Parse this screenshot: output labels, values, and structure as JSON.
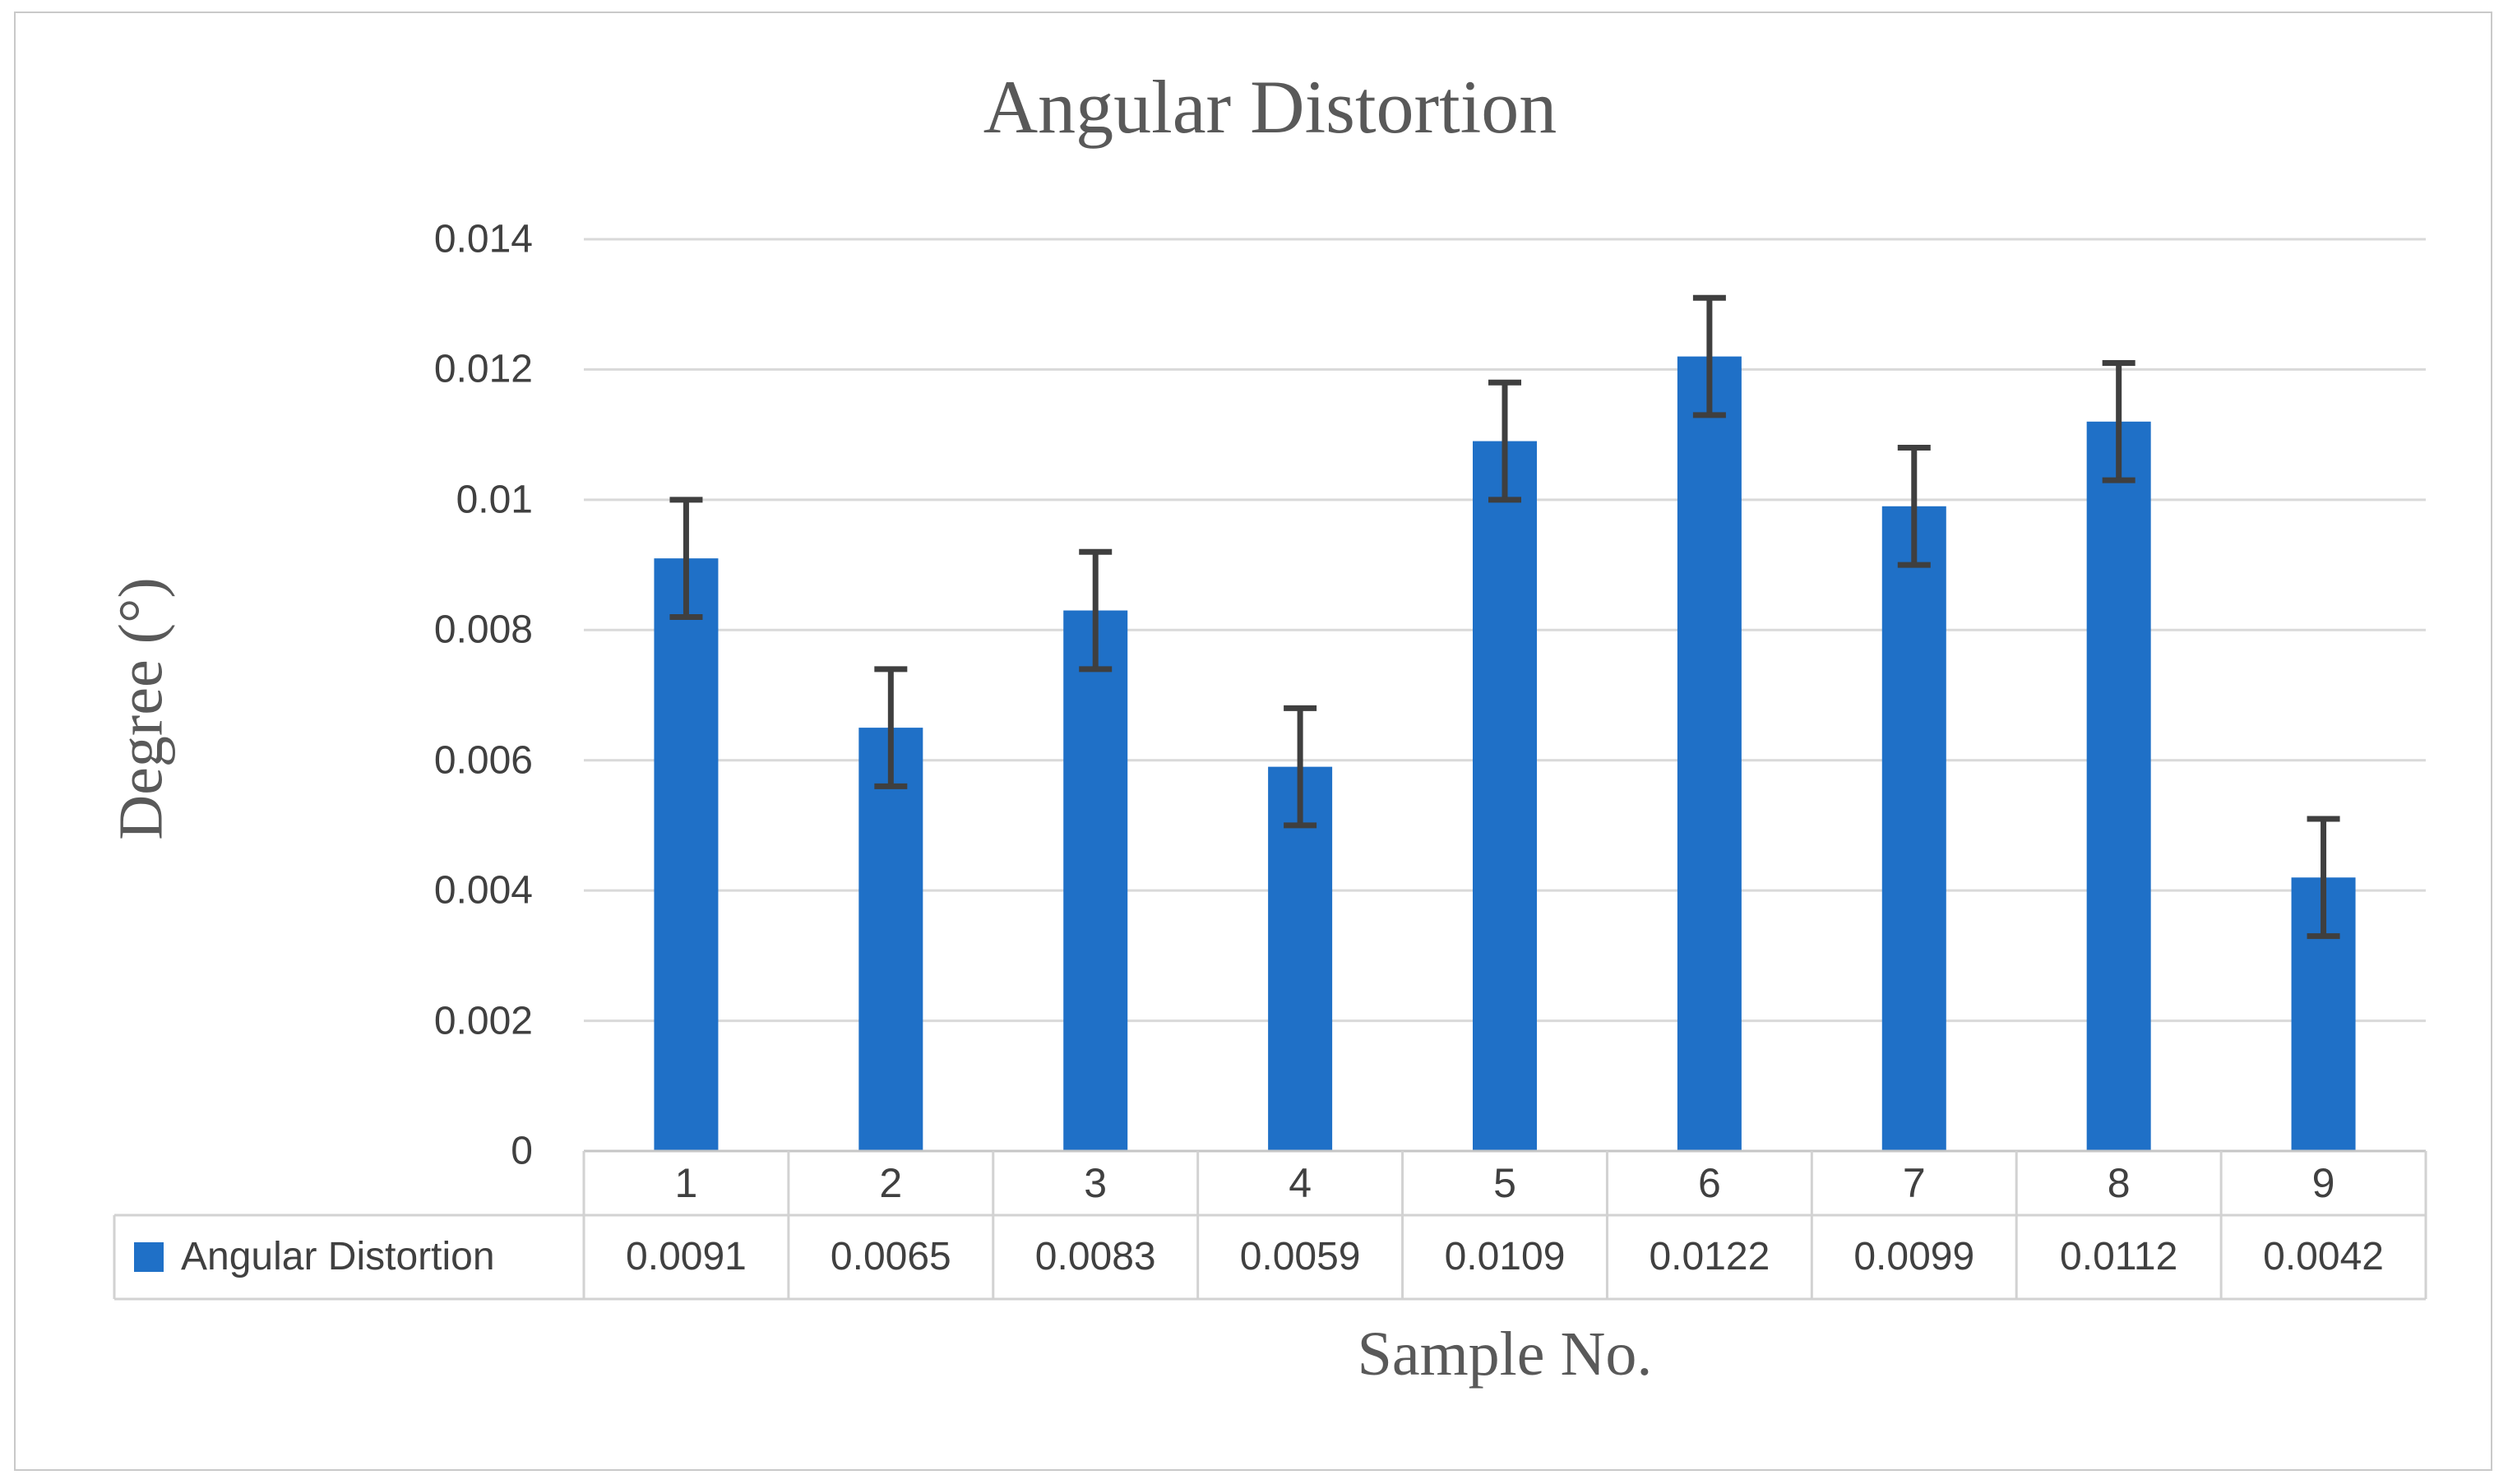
{
  "figure": {
    "title": "Angular Distortion",
    "y_axis_title": "Degree (°)",
    "x_axis_title": "Sample No."
  },
  "chart_data": {
    "type": "bar",
    "title": "Angular Distortion",
    "xlabel": "Sample No.",
    "ylabel": "Degree (°)",
    "categories": [
      "1",
      "2",
      "3",
      "4",
      "5",
      "6",
      "7",
      "8",
      "9"
    ],
    "series": [
      {
        "name": "Angular Distortion",
        "values": [
          0.0091,
          0.0065,
          0.0083,
          0.0059,
          0.0109,
          0.0122,
          0.0099,
          0.0112,
          0.0042
        ],
        "value_labels": [
          "0.0091",
          "0.0065",
          "0.0083",
          "0.0059",
          "0.0109",
          "0.0122",
          "0.0099",
          "0.0112",
          "0.0042"
        ],
        "error": 0.0009
      }
    ],
    "ylim": [
      0,
      0.014
    ],
    "ytick_values": [
      0,
      0.002,
      0.004,
      0.006,
      0.008,
      0.01,
      0.012,
      0.014
    ],
    "ytick_labels": [
      "0",
      "0.002",
      "0.004",
      "0.006",
      "0.008",
      "0.01",
      "0.012",
      "0.014"
    ],
    "grid": true,
    "legend_position": "data-table-left",
    "data_table_shown": true
  },
  "colors": {
    "bar": "#1F70C7",
    "error_bar": "#3f3f3f",
    "gridline": "#d9d9d9",
    "axis_line": "#c6c6c6",
    "table_border": "#d2d2d2",
    "tick_text": "#404040",
    "title_text": "#595959",
    "figure_border": "#c9c9c9",
    "background": "#ffffff"
  }
}
